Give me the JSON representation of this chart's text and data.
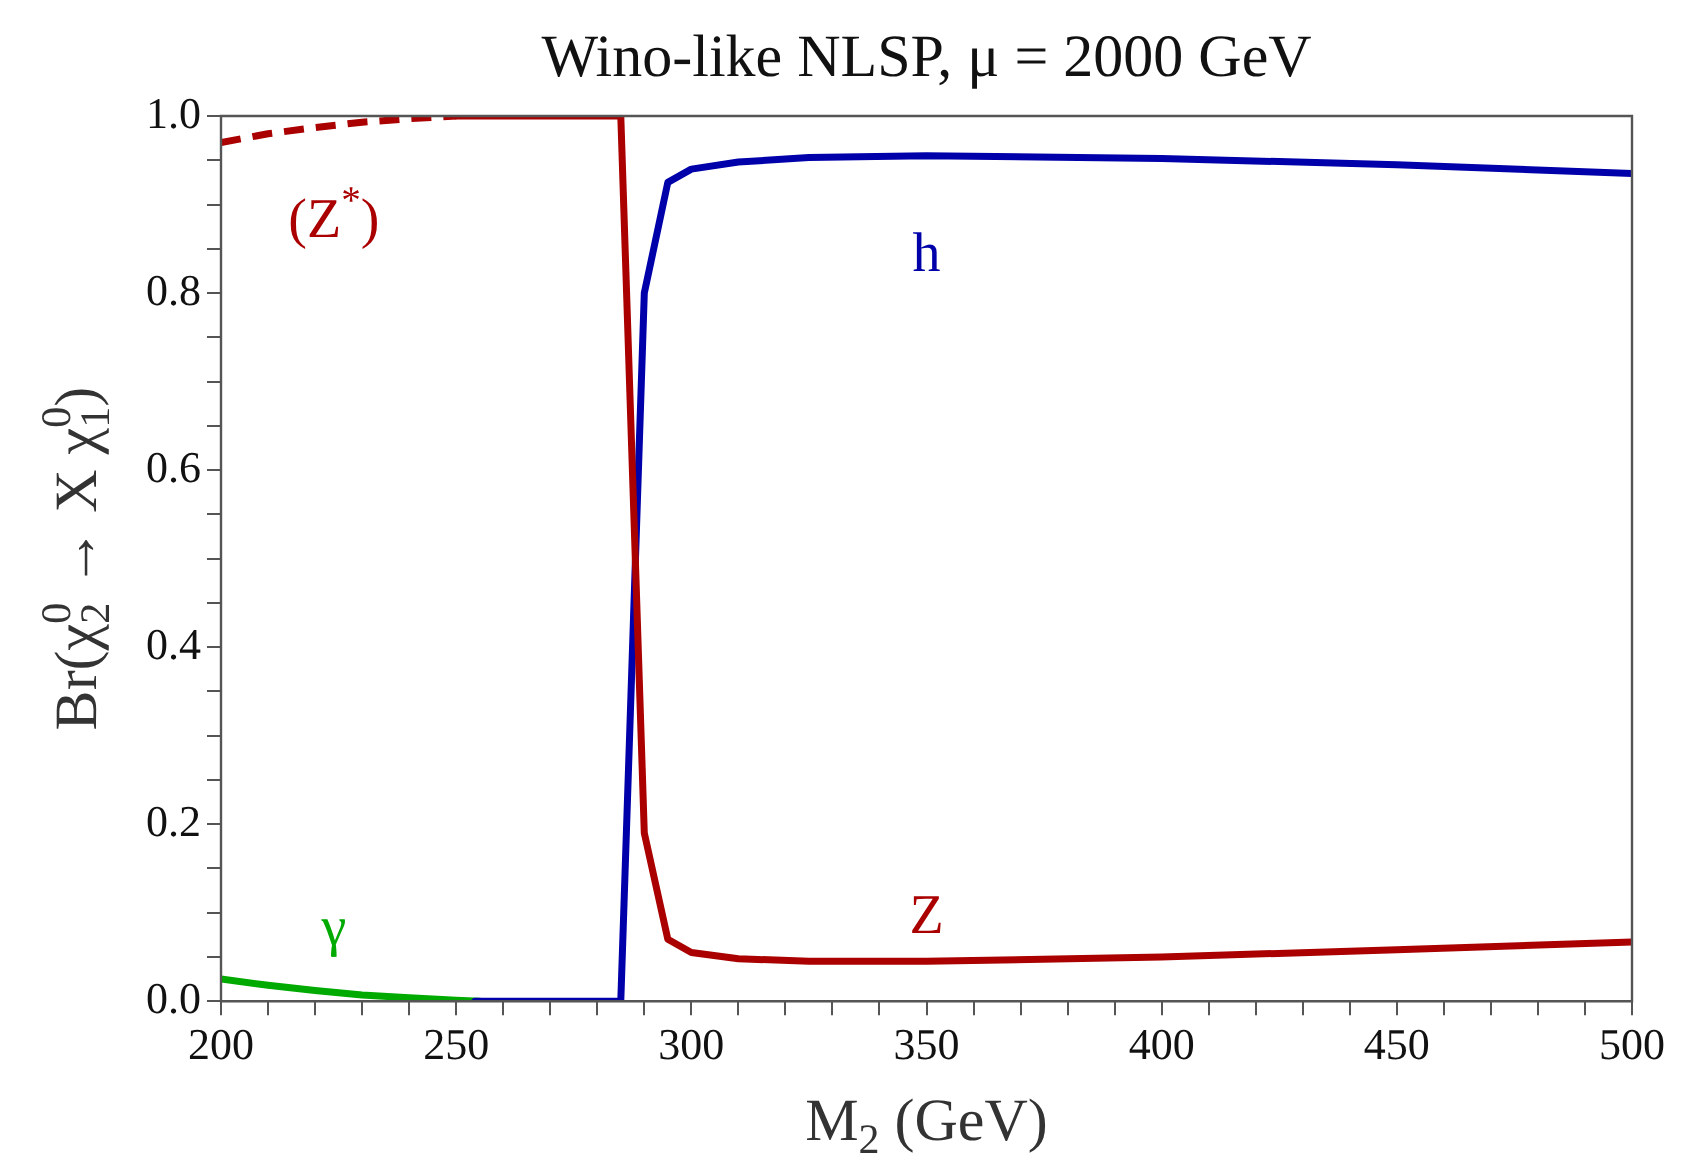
{
  "chart_data": {
    "type": "line",
    "title": "Wino-like NLSP, μ = 2000 GeV",
    "xlabel": "M$_{2}$ (GeV)",
    "ylabel": "Br(χ$_{2}$$^{0}$ → X χ$_{1}$$^{0}$)",
    "xlim": [
      200,
      500
    ],
    "ylim": [
      0,
      1
    ],
    "xticks": [
      200,
      {
        "value": 210,
        "label": null
      },
      {
        "value": 220,
        "label": null
      },
      {
        "value": 230,
        "label": null
      },
      {
        "value": 240,
        "label": null
      },
      250,
      {
        "value": 260,
        "label": null
      },
      {
        "value": 270,
        "label": null
      },
      {
        "value": 280,
        "label": null
      },
      {
        "value": 290,
        "label": null
      },
      300,
      {
        "value": 310,
        "label": null
      },
      {
        "value": 320,
        "label": null
      },
      {
        "value": 330,
        "label": null
      },
      {
        "value": 340,
        "label": null
      },
      350,
      {
        "value": 360,
        "label": null
      },
      {
        "value": 370,
        "label": null
      },
      {
        "value": 380,
        "label": null
      },
      {
        "value": 390,
        "label": null
      },
      400,
      {
        "value": 410,
        "label": null
      },
      {
        "value": 420,
        "label": null
      },
      {
        "value": 430,
        "label": null
      },
      {
        "value": 440,
        "label": null
      },
      450,
      {
        "value": 460,
        "label": null
      },
      {
        "value": 470,
        "label": null
      },
      {
        "value": 480,
        "label": null
      },
      {
        "value": 490,
        "label": null
      },
      500
    ],
    "yticks": [
      {
        "value": 0,
        "label": "0.0"
      },
      {
        "value": 0.05,
        "label": null
      },
      {
        "value": 0.1,
        "label": null
      },
      {
        "value": 0.15,
        "label": null
      },
      {
        "value": 0.2,
        "label": "0.2"
      },
      {
        "value": 0.25,
        "label": null
      },
      {
        "value": 0.3,
        "label": null
      },
      {
        "value": 0.35,
        "label": null
      },
      {
        "value": 0.4,
        "label": "0.4"
      },
      {
        "value": 0.45,
        "label": null
      },
      {
        "value": 0.5,
        "label": null
      },
      {
        "value": 0.55,
        "label": null
      },
      {
        "value": 0.6,
        "label": "0.6"
      },
      {
        "value": 0.65,
        "label": null
      },
      {
        "value": 0.7,
        "label": null
      },
      {
        "value": 0.75,
        "label": null
      },
      {
        "value": 0.8,
        "label": "0.8"
      },
      {
        "value": 0.85,
        "label": null
      },
      {
        "value": 0.9,
        "label": null
      },
      {
        "value": 0.95,
        "label": null
      },
      {
        "value": 1,
        "label": "1.0"
      }
    ],
    "grid": false,
    "series": [
      {
        "name": "(Z$^{*}$)",
        "color": "#aa0000",
        "line_style": "dashed",
        "x": [
          200,
          210,
          220,
          230,
          240,
          250
        ],
        "values": [
          0.97,
          0.98,
          0.987,
          0.993,
          0.997,
          1.0
        ]
      },
      {
        "name": "Z",
        "color": "#aa0000",
        "line_style": "solid",
        "x": [
          250,
          285,
          290,
          295,
          300,
          310,
          325,
          350,
          400,
          450,
          500
        ],
        "values": [
          1.0,
          1.0,
          0.19,
          0.07,
          0.055,
          0.048,
          0.045,
          0.045,
          0.05,
          0.058,
          0.067
        ]
      },
      {
        "name": "h",
        "color": "#0000aa",
        "line_style": "solid",
        "x": [
          254,
          285,
          290,
          295,
          300,
          310,
          325,
          350,
          400,
          450,
          500
        ],
        "values": [
          0,
          0,
          0.8,
          0.925,
          0.94,
          0.948,
          0.953,
          0.955,
          0.952,
          0.945,
          0.935
        ]
      },
      {
        "name": "γ",
        "color": "#00aa00",
        "line_style": "solid",
        "x": [
          200,
          210,
          220,
          230,
          240,
          250,
          255
        ],
        "values": [
          0.025,
          0.018,
          0.012,
          0.007,
          0.004,
          0.001,
          0
        ]
      }
    ]
  }
}
